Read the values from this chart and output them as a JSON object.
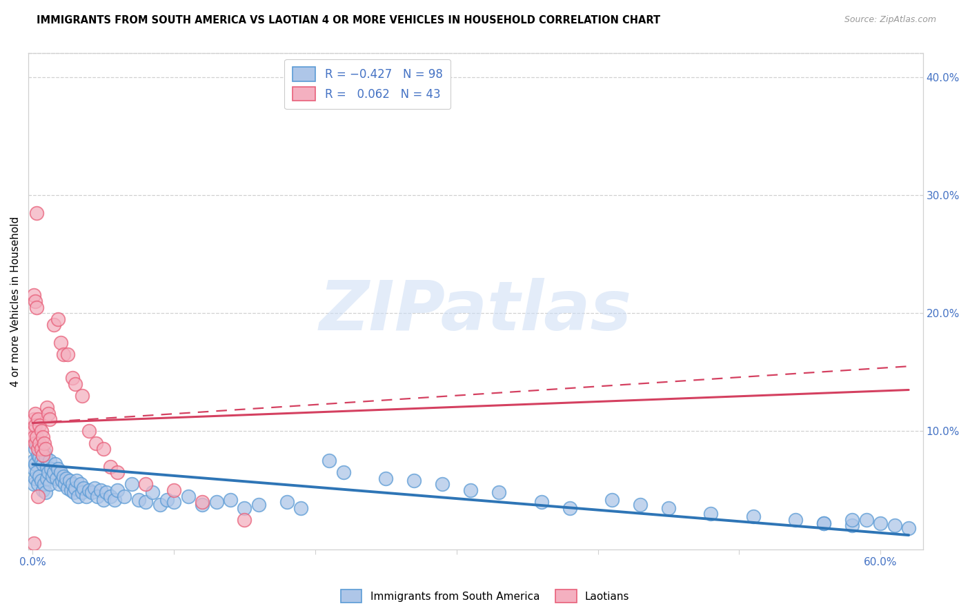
{
  "title": "IMMIGRANTS FROM SOUTH AMERICA VS LAOTIAN 4 OR MORE VEHICLES IN HOUSEHOLD CORRELATION CHART",
  "source": "Source: ZipAtlas.com",
  "ylabel": "4 or more Vehicles in Household",
  "ylim": [
    0.0,
    0.42
  ],
  "xlim": [
    -0.003,
    0.63
  ],
  "watermark_text": "ZIPatlas",
  "blue_scatter_x": [
    0.001,
    0.001,
    0.001,
    0.002,
    0.002,
    0.002,
    0.003,
    0.003,
    0.004,
    0.004,
    0.005,
    0.005,
    0.006,
    0.006,
    0.007,
    0.007,
    0.008,
    0.008,
    0.009,
    0.009,
    0.01,
    0.01,
    0.011,
    0.012,
    0.012,
    0.013,
    0.014,
    0.015,
    0.016,
    0.017,
    0.018,
    0.019,
    0.02,
    0.021,
    0.022,
    0.023,
    0.024,
    0.025,
    0.026,
    0.027,
    0.028,
    0.029,
    0.03,
    0.031,
    0.032,
    0.034,
    0.035,
    0.036,
    0.038,
    0.04,
    0.042,
    0.044,
    0.046,
    0.048,
    0.05,
    0.052,
    0.055,
    0.058,
    0.06,
    0.065,
    0.07,
    0.075,
    0.08,
    0.085,
    0.09,
    0.095,
    0.1,
    0.11,
    0.12,
    0.13,
    0.14,
    0.15,
    0.16,
    0.18,
    0.19,
    0.21,
    0.22,
    0.25,
    0.27,
    0.29,
    0.31,
    0.33,
    0.36,
    0.38,
    0.41,
    0.43,
    0.45,
    0.48,
    0.51,
    0.54,
    0.56,
    0.58,
    0.59,
    0.6,
    0.61,
    0.62,
    0.58,
    0.56
  ],
  "blue_scatter_y": [
    0.075,
    0.068,
    0.055,
    0.085,
    0.072,
    0.06,
    0.09,
    0.065,
    0.08,
    0.055,
    0.078,
    0.062,
    0.075,
    0.058,
    0.072,
    0.05,
    0.082,
    0.055,
    0.078,
    0.048,
    0.07,
    0.06,
    0.065,
    0.075,
    0.055,
    0.068,
    0.062,
    0.065,
    0.072,
    0.06,
    0.068,
    0.055,
    0.065,
    0.058,
    0.062,
    0.055,
    0.06,
    0.052,
    0.058,
    0.05,
    0.055,
    0.048,
    0.052,
    0.058,
    0.045,
    0.055,
    0.048,
    0.052,
    0.045,
    0.05,
    0.048,
    0.052,
    0.045,
    0.05,
    0.042,
    0.048,
    0.045,
    0.042,
    0.05,
    0.045,
    0.055,
    0.042,
    0.04,
    0.048,
    0.038,
    0.042,
    0.04,
    0.045,
    0.038,
    0.04,
    0.042,
    0.035,
    0.038,
    0.04,
    0.035,
    0.075,
    0.065,
    0.06,
    0.058,
    0.055,
    0.05,
    0.048,
    0.04,
    0.035,
    0.042,
    0.038,
    0.035,
    0.03,
    0.028,
    0.025,
    0.022,
    0.02,
    0.025,
    0.022,
    0.02,
    0.018,
    0.025,
    0.022
  ],
  "pink_scatter_x": [
    0.001,
    0.001,
    0.001,
    0.001,
    0.002,
    0.002,
    0.002,
    0.003,
    0.003,
    0.004,
    0.004,
    0.005,
    0.005,
    0.006,
    0.006,
    0.007,
    0.007,
    0.008,
    0.009,
    0.01,
    0.011,
    0.012,
    0.015,
    0.018,
    0.02,
    0.022,
    0.025,
    0.028,
    0.03,
    0.035,
    0.04,
    0.045,
    0.05,
    0.055,
    0.06,
    0.08,
    0.1,
    0.12,
    0.15,
    0.001,
    0.002,
    0.003,
    0.004
  ],
  "pink_scatter_y": [
    0.11,
    0.1,
    0.095,
    0.005,
    0.115,
    0.105,
    0.09,
    0.285,
    0.095,
    0.11,
    0.085,
    0.105,
    0.09,
    0.1,
    0.085,
    0.095,
    0.08,
    0.09,
    0.085,
    0.12,
    0.115,
    0.11,
    0.19,
    0.195,
    0.175,
    0.165,
    0.165,
    0.145,
    0.14,
    0.13,
    0.1,
    0.09,
    0.085,
    0.07,
    0.065,
    0.055,
    0.05,
    0.04,
    0.025,
    0.215,
    0.21,
    0.205,
    0.045
  ],
  "blue_line_x": [
    0.0,
    0.62
  ],
  "blue_line_y": [
    0.072,
    0.012
  ],
  "pink_solid_line_x": [
    0.0,
    0.62
  ],
  "pink_solid_line_y": [
    0.107,
    0.135
  ],
  "pink_dashed_line_x": [
    0.0,
    0.62
  ],
  "pink_dashed_line_y": [
    0.107,
    0.155
  ],
  "blue_face": "#aec6e8",
  "blue_edge": "#5b9bd5",
  "pink_face": "#f4b0c0",
  "pink_edge": "#e8607a",
  "blue_line_color": "#2E75B6",
  "pink_line_color": "#d44060",
  "axis_color": "#4472c4",
  "grid_color": "#d0d0d0",
  "title_fontsize": 10.5,
  "source_fontsize": 9,
  "tick_fontsize": 11,
  "ylabel_fontsize": 11
}
